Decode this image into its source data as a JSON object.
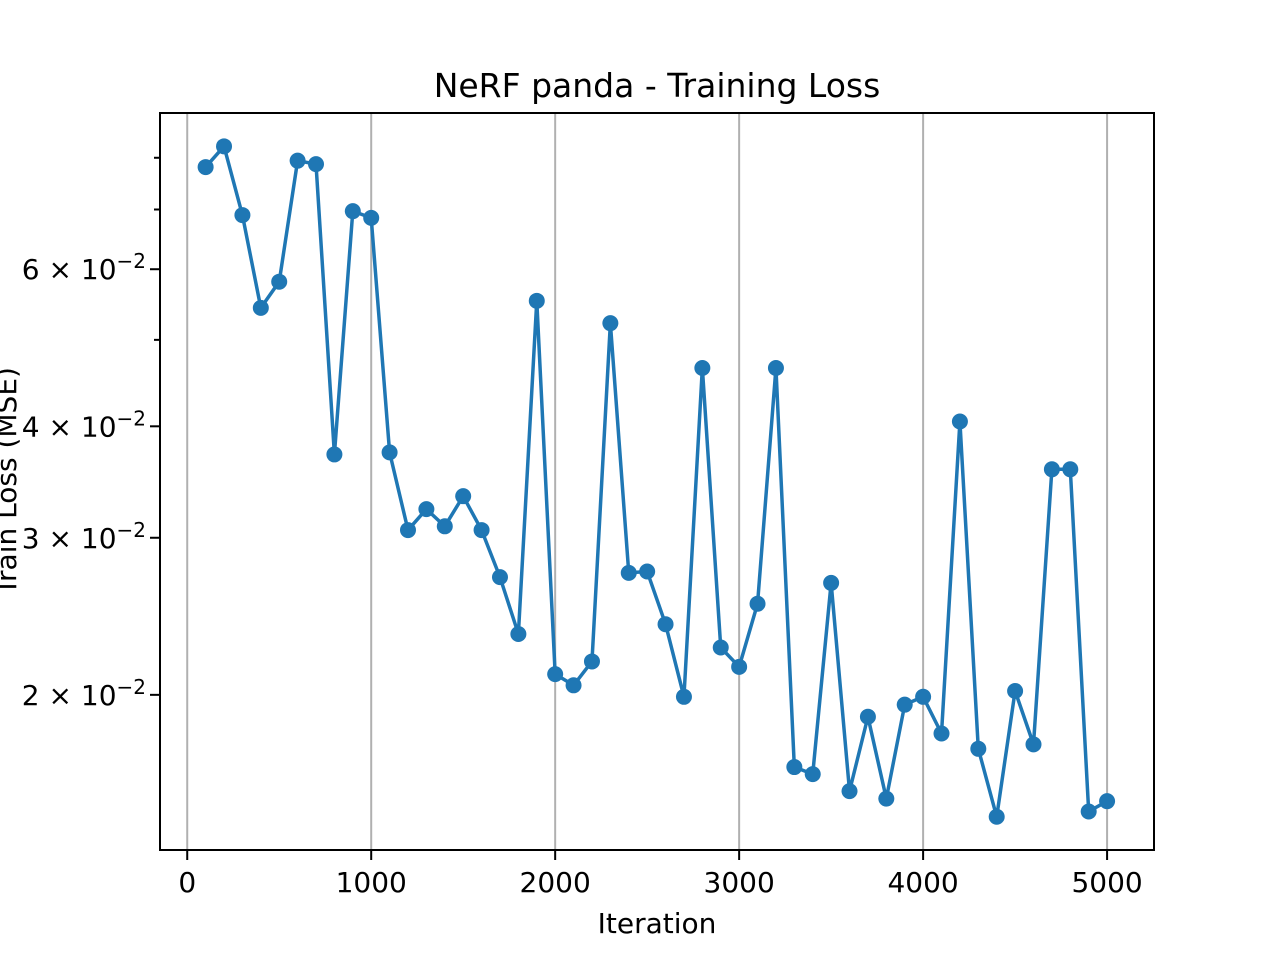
{
  "chart_data": {
    "type": "line",
    "title": "NeRF panda - Training Loss",
    "xlabel": "Iteration",
    "ylabel": "Train Loss (MSE)",
    "yscale": "log",
    "grid": "vertical-only",
    "legend": "none",
    "x": [
      100,
      200,
      300,
      400,
      500,
      600,
      700,
      800,
      900,
      1000,
      1100,
      1200,
      1300,
      1400,
      1500,
      1600,
      1700,
      1800,
      1900,
      2000,
      2100,
      2200,
      2300,
      2400,
      2500,
      2600,
      2700,
      2800,
      2900,
      3000,
      3100,
      3200,
      3300,
      3400,
      3500,
      3600,
      3700,
      3800,
      3900,
      4000,
      4100,
      4200,
      4300,
      4400,
      4500,
      4600,
      4700,
      4800,
      4900,
      5000
    ],
    "values": [
      0.0781,
      0.0824,
      0.069,
      0.0543,
      0.0581,
      0.0794,
      0.0787,
      0.0372,
      0.0697,
      0.0685,
      0.0374,
      0.0306,
      0.0323,
      0.0309,
      0.0334,
      0.0306,
      0.0271,
      0.0234,
      0.0553,
      0.0211,
      0.0205,
      0.0218,
      0.0522,
      0.0274,
      0.0275,
      0.024,
      0.0199,
      0.0465,
      0.0226,
      0.0215,
      0.0253,
      0.0465,
      0.0166,
      0.0163,
      0.0267,
      0.0156,
      0.0189,
      0.0153,
      0.0195,
      0.0199,
      0.0181,
      0.0405,
      0.0174,
      0.0146,
      0.0202,
      0.0176,
      0.0358,
      0.0358,
      0.0148,
      0.0152
    ],
    "xlim": [
      -148,
      5255
    ],
    "ylim": [
      0.0134,
      0.0898
    ],
    "x_ticks": [
      {
        "value": 0,
        "label": "0"
      },
      {
        "value": 1000,
        "label": "1000"
      },
      {
        "value": 2000,
        "label": "2000"
      },
      {
        "value": 3000,
        "label": "3000"
      },
      {
        "value": 4000,
        "label": "4000"
      },
      {
        "value": 5000,
        "label": "5000"
      }
    ],
    "y_ticks_labeled": [
      {
        "value": 0.06,
        "base": "6 × 10",
        "sup": "−2"
      },
      {
        "value": 0.04,
        "base": "4 × 10",
        "sup": "−2"
      },
      {
        "value": 0.03,
        "base": "3 × 10",
        "sup": "−2"
      },
      {
        "value": 0.02,
        "base": "2 × 10",
        "sup": "−2"
      }
    ],
    "y_ticks_minor": [
      0.05,
      0.07,
      0.08
    ],
    "line_color": "#1f77b4",
    "marker": "o",
    "grid_color": "#b0b0b0",
    "spine_color": "#000000",
    "background_color": "#ffffff"
  }
}
